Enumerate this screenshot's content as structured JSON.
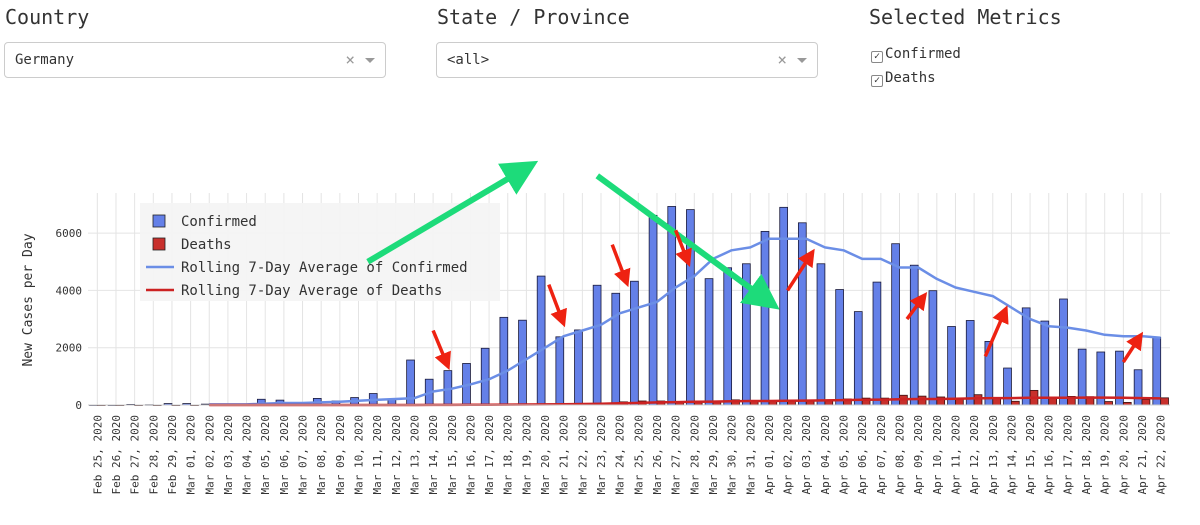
{
  "controls": {
    "country_label": "Country",
    "country_value": "Germany",
    "state_label": "State / Province",
    "state_value": "<all>",
    "clear_glyph": "×",
    "metrics_label": "Selected Metrics",
    "metrics": [
      {
        "label": "Confirmed",
        "checked": true
      },
      {
        "label": "Deaths",
        "checked": true
      }
    ],
    "check_glyph": "✓"
  },
  "colors": {
    "confirmed": "#6480e8",
    "deaths": "#c8302c",
    "avg_confirmed": "#6b8ee6",
    "avg_deaths": "#cc2222",
    "green_arrow": "#1ddb7a",
    "red_arrow": "#ee2211"
  },
  "chart_data": {
    "type": "bar",
    "ylabel": "New Cases per Day",
    "ylim": [
      0,
      7400
    ],
    "yticks": [
      0,
      2000,
      4000,
      6000
    ],
    "grid": true,
    "legend_position": "top-left",
    "categories": [
      "Feb 25, 2020",
      "Feb 26, 2020",
      "Feb 27, 2020",
      "Feb 28, 2020",
      "Feb 29, 2020",
      "Mar 01, 2020",
      "Mar 02, 2020",
      "Mar 03, 2020",
      "Mar 04, 2020",
      "Mar 05, 2020",
      "Mar 06, 2020",
      "Mar 07, 2020",
      "Mar 08, 2020",
      "Mar 09, 2020",
      "Mar 10, 2020",
      "Mar 11, 2020",
      "Mar 12, 2020",
      "Mar 13, 2020",
      "Mar 14, 2020",
      "Mar 15, 2020",
      "Mar 16, 2020",
      "Mar 17, 2020",
      "Mar 18, 2020",
      "Mar 19, 2020",
      "Mar 20, 2020",
      "Mar 21, 2020",
      "Mar 22, 2020",
      "Mar 23, 2020",
      "Mar 24, 2020",
      "Mar 25, 2020",
      "Mar 26, 2020",
      "Mar 27, 2020",
      "Mar 28, 2020",
      "Mar 29, 2020",
      "Mar 30, 2020",
      "Mar 31, 2020",
      "Apr 01, 2020",
      "Apr 02, 2020",
      "Apr 03, 2020",
      "Apr 04, 2020",
      "Apr 05, 2020",
      "Apr 06, 2020",
      "Apr 07, 2020",
      "Apr 08, 2020",
      "Apr 09, 2020",
      "Apr 10, 2020",
      "Apr 11, 2020",
      "Apr 12, 2020",
      "Apr 13, 2020",
      "Apr 14, 2020",
      "Apr 15, 2020",
      "Apr 16, 2020",
      "Apr 17, 2020",
      "Apr 18, 2020",
      "Apr 19, 2020",
      "Apr 20, 2020",
      "Apr 21, 2020",
      "Apr 22, 2020"
    ],
    "series": [
      {
        "name": "Confirmed",
        "kind": "bar",
        "values": [
          2,
          1,
          20,
          10,
          50,
          50,
          30,
          30,
          30,
          200,
          170,
          30,
          230,
          140,
          260,
          400,
          200,
          1570,
          900,
          1200,
          1450,
          1980,
          3060,
          2960,
          4500,
          2380,
          2620,
          4180,
          3900,
          4320,
          6620,
          6930,
          6820,
          4410,
          4790,
          4930,
          6060,
          6900,
          6360,
          4930,
          4030,
          3260,
          4290,
          5630,
          4880,
          3990,
          2740,
          2950,
          2220,
          1290,
          3390,
          2930,
          3700,
          1950,
          1850,
          1880,
          1230,
          2360
        ]
      },
      {
        "name": "Deaths",
        "kind": "bar",
        "values": [
          0,
          0,
          0,
          0,
          0,
          0,
          0,
          0,
          0,
          0,
          0,
          0,
          0,
          0,
          2,
          0,
          2,
          5,
          5,
          5,
          10,
          13,
          22,
          25,
          30,
          40,
          55,
          72,
          110,
          140,
          140,
          110,
          140,
          130,
          180,
          160,
          150,
          170,
          170,
          170,
          210,
          240,
          240,
          340,
          310,
          280,
          240,
          360,
          260,
          130,
          510,
          260,
          300,
          290,
          120,
          90,
          190,
          250
        ]
      },
      {
        "name": "Rolling 7-Day Average of Confirmed",
        "kind": "line",
        "values": [
          null,
          null,
          null,
          null,
          null,
          null,
          20,
          20,
          20,
          50,
          70,
          70,
          90,
          110,
          150,
          180,
          210,
          240,
          470,
          570,
          720,
          900,
          1200,
          1600,
          2000,
          2400,
          2600,
          2800,
          3200,
          3400,
          3600,
          4100,
          4500,
          5100,
          5400,
          5500,
          5800,
          5800,
          5800,
          5500,
          5400,
          5100,
          5100,
          4800,
          4800,
          4400,
          4100,
          3950,
          3800,
          3400,
          3000,
          2750,
          2700,
          2600,
          2450,
          2400,
          2400,
          2350
        ]
      },
      {
        "name": "Rolling 7-Day Average of Deaths",
        "kind": "line",
        "values": [
          null,
          null,
          null,
          null,
          null,
          null,
          0,
          0,
          0,
          0,
          0,
          0,
          0,
          0,
          0,
          0,
          0,
          0,
          5,
          5,
          8,
          10,
          14,
          18,
          22,
          28,
          36,
          46,
          60,
          75,
          90,
          100,
          110,
          120,
          130,
          140,
          140,
          150,
          155,
          160,
          170,
          180,
          190,
          200,
          210,
          210,
          220,
          230,
          240,
          240,
          250,
          250,
          255,
          260,
          260,
          250,
          240,
          230
        ]
      }
    ],
    "annotations": {
      "green_arrows": [
        {
          "from_x": 14.5,
          "from_y": 5000,
          "to_x": 22.8,
          "to_y": 8200
        },
        {
          "from_x": 26.8,
          "from_y": 8000,
          "to_x": 35.8,
          "to_y": 3700
        }
      ],
      "red_arrows": [
        {
          "from_x": 18.0,
          "from_y": 2600,
          "to_x": 18.7,
          "to_y": 1500
        },
        {
          "from_x": 24.2,
          "from_y": 4200,
          "to_x": 24.9,
          "to_y": 3000
        },
        {
          "from_x": 27.6,
          "from_y": 5600,
          "to_x": 28.3,
          "to_y": 4400
        },
        {
          "from_x": 31.0,
          "from_y": 6100,
          "to_x": 31.6,
          "to_y": 5100
        },
        {
          "from_x": 37.0,
          "from_y": 4000,
          "to_x": 38.2,
          "to_y": 5200
        },
        {
          "from_x": 43.4,
          "from_y": 3000,
          "to_x": 44.2,
          "to_y": 3700
        },
        {
          "from_x": 47.6,
          "from_y": 1700,
          "to_x": 48.6,
          "to_y": 3200
        },
        {
          "from_x": 55.0,
          "from_y": 1500,
          "to_x": 55.8,
          "to_y": 2300
        }
      ]
    }
  }
}
